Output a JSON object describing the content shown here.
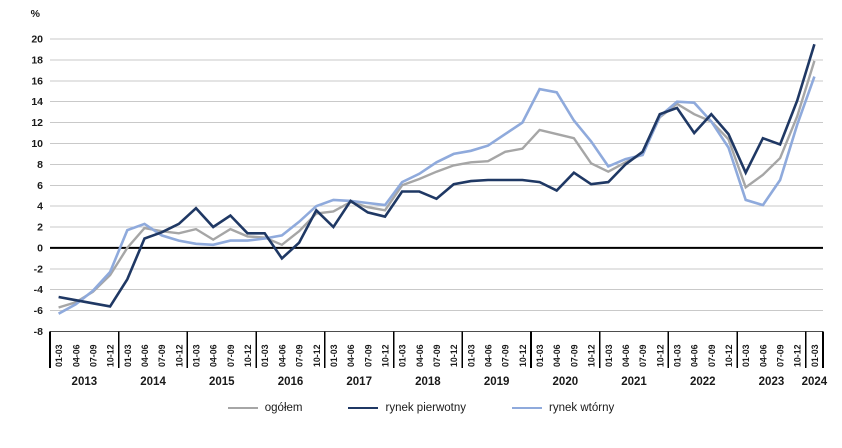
{
  "chart_data": {
    "type": "line",
    "title": "",
    "unit_label": "%",
    "ylim": [
      -8,
      20
    ],
    "ytick_step": 2,
    "grid": true,
    "legend_position": "bottom",
    "years": [
      "2013",
      "2014",
      "2015",
      "2016",
      "2017",
      "2018",
      "2019",
      "2020",
      "2021",
      "2022",
      "2023",
      "2024"
    ],
    "quarter_labels": [
      "01-03",
      "04-06",
      "07-09",
      "10-12"
    ],
    "quarters_in_last_year": 1,
    "colors": {
      "ogolem": "#A6A6A6",
      "pierwotny": "#1F3864",
      "wtorny": "#8FAADC",
      "gridline": "#C9C9C9",
      "zero_line": "#000000",
      "axis_line": "#4D4D4D",
      "separator": "#000000"
    },
    "series": [
      {
        "name": "ogółem",
        "color": "#A6A6A6",
        "width": 2.4,
        "values": [
          -5.7,
          -5.2,
          -4.2,
          -2.6,
          0.0,
          1.9,
          1.6,
          1.4,
          1.8,
          0.8,
          1.8,
          1.1,
          1.0,
          0.3,
          1.6,
          3.3,
          3.5,
          4.4,
          3.9,
          3.6,
          6.0,
          6.6,
          7.3,
          7.9,
          8.2,
          8.3,
          9.2,
          9.5,
          11.3,
          10.9,
          10.5,
          8.1,
          7.3,
          8.2,
          9.0,
          12.5,
          13.8,
          12.8,
          12.1,
          10.4,
          5.8,
          7.0,
          8.6,
          12.6,
          17.9
        ]
      },
      {
        "name": "rynek pierwotny",
        "color": "#1F3864",
        "width": 2.6,
        "values": [
          -4.7,
          -5.0,
          -5.3,
          -5.6,
          -3.0,
          0.9,
          1.5,
          2.3,
          3.8,
          2.0,
          3.1,
          1.4,
          1.4,
          -1.0,
          0.5,
          3.6,
          2.0,
          4.5,
          3.4,
          3.0,
          5.4,
          5.4,
          4.7,
          6.1,
          6.4,
          6.5,
          6.5,
          6.5,
          6.3,
          5.5,
          7.2,
          6.1,
          6.3,
          8.0,
          9.2,
          12.8,
          13.4,
          11.0,
          12.8,
          10.9,
          7.2,
          10.5,
          9.9,
          14.1,
          19.5
        ]
      },
      {
        "name": "rynek wtórny",
        "color": "#8FAADC",
        "width": 2.6,
        "values": [
          -6.3,
          -5.4,
          -4.1,
          -2.3,
          1.7,
          2.3,
          1.2,
          0.7,
          0.4,
          0.3,
          0.7,
          0.7,
          0.9,
          1.2,
          2.5,
          4.0,
          4.6,
          4.5,
          4.3,
          4.1,
          6.3,
          7.1,
          8.2,
          9.0,
          9.3,
          9.8,
          10.9,
          12.0,
          15.2,
          14.9,
          12.2,
          10.2,
          7.8,
          8.5,
          8.9,
          12.6,
          14.0,
          13.9,
          12.1,
          9.6,
          4.6,
          4.1,
          6.5,
          11.8,
          16.4
        ]
      }
    ],
    "legend_order": [
      0,
      1,
      2
    ]
  }
}
